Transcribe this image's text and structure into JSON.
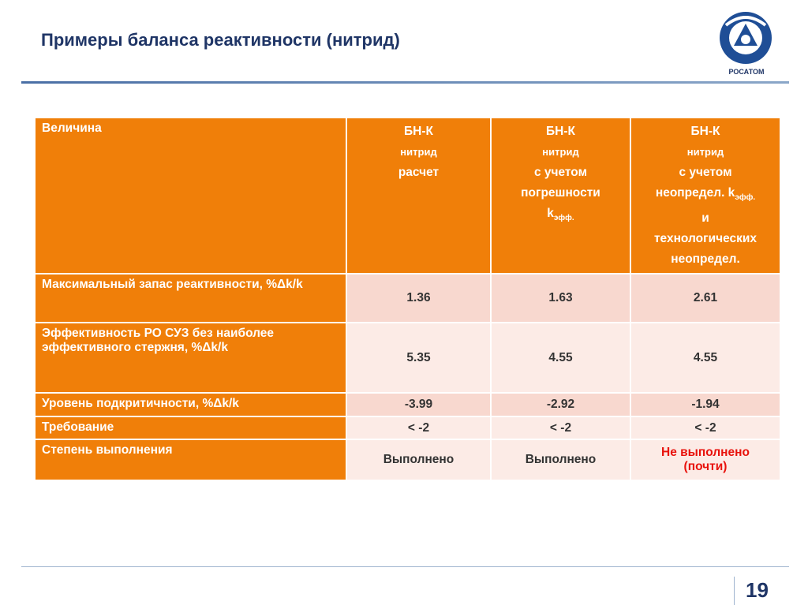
{
  "header": {
    "title": "Примеры баланса реактивности (нитрид)",
    "logo_text": "РОСАТОМ"
  },
  "table": {
    "columns": [
      [
        {
          "text": "Величина"
        }
      ],
      [
        {
          "text": "БН-К"
        },
        {
          "text": "нитрид",
          "small": true
        },
        {
          "text": "расчет"
        }
      ],
      [
        {
          "text": "БН-К"
        },
        {
          "text": "нитрид",
          "small": true
        },
        {
          "text": "с учетом"
        },
        {
          "text": "погрешности"
        },
        {
          "text": "k",
          "sub": "эфф."
        }
      ],
      [
        {
          "text": "БН-К"
        },
        {
          "text": "нитрид",
          "small": true
        },
        {
          "text": "с учетом"
        },
        {
          "text": "неопредел. k",
          "sub": "эфф."
        },
        {
          "text": "и"
        },
        {
          "text": "технологических"
        },
        {
          "text": "неопредел."
        }
      ]
    ],
    "rows": [
      {
        "label": "Максимальный запас реактивности, %Δk/k",
        "values": [
          1.36,
          1.63,
          2.61
        ]
      },
      {
        "label": "Эффективность РО СУЗ без наиболее эффективного стержня, %Δk/k",
        "values": [
          5.35,
          4.55,
          4.55
        ]
      },
      {
        "label": "Уровень подкритичности, %Δk/k",
        "values": [
          -3.99,
          -2.92,
          -1.94
        ]
      },
      {
        "label": "Требование",
        "values": [
          "< -2",
          "< -2",
          "< -2"
        ]
      },
      {
        "label": "Степень выполнения",
        "values": [
          "Выполнено",
          "Выполнено",
          {
            "lines": [
              "Не выполнено",
              "(почти)"
            ],
            "color": "#e8120c"
          }
        ]
      }
    ]
  },
  "footer": {
    "page_number": 19
  }
}
